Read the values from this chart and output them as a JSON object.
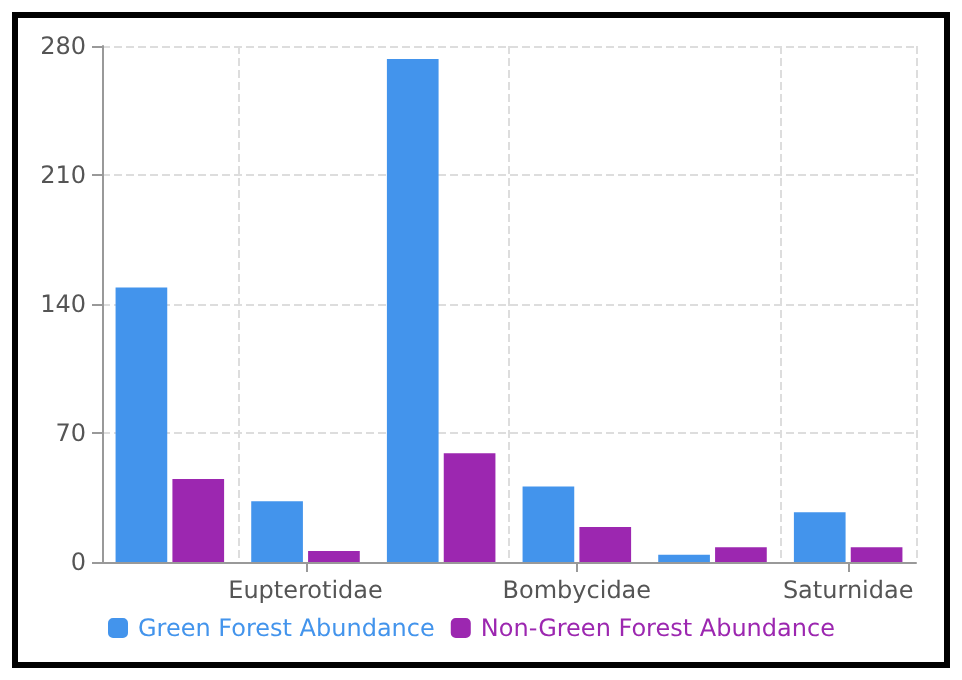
{
  "chart_data": {
    "type": "bar",
    "categories": [
      null,
      "Eupterotidae",
      null,
      "Bombycidae",
      null,
      "Saturnidae"
    ],
    "series": [
      {
        "name": "Green Forest Abundance",
        "color": "#4394ec",
        "values": [
          149,
          33,
          273,
          41,
          4,
          27
        ]
      },
      {
        "name": "Non-Green Forest Abundance",
        "color": "#9c27b0",
        "values": [
          45,
          6,
          59,
          19,
          8,
          8
        ]
      }
    ],
    "ylim": [
      0,
      280
    ],
    "yticks": [
      0,
      70,
      140,
      210,
      280
    ],
    "grid": true,
    "legend": "bottom left"
  }
}
